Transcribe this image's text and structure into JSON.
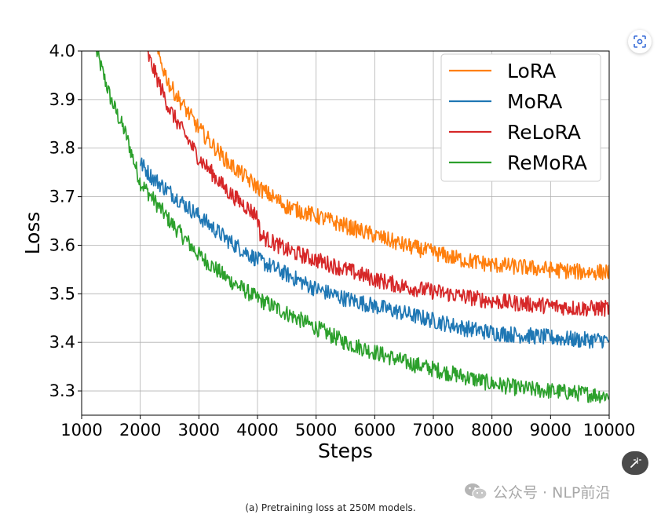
{
  "chart_data": {
    "type": "line",
    "xlabel": "Steps",
    "ylabel": "Loss",
    "xlim": [
      1000,
      10000
    ],
    "ylim": [
      3.25,
      4.0
    ],
    "x_ticks": [
      "1000",
      "2000",
      "3000",
      "4000",
      "5000",
      "6000",
      "7000",
      "8000",
      "9000",
      "10000"
    ],
    "y_ticks": [
      "3.3",
      "3.4",
      "3.5",
      "3.6",
      "3.7",
      "3.8",
      "3.9",
      "4.0"
    ],
    "grid": true,
    "legend_position": "top-right",
    "series": [
      {
        "name": "LoRA",
        "color": "#ff7f0e",
        "x": [
          2280,
          2500,
          3000,
          3500,
          4000,
          4500,
          5000,
          5500,
          6000,
          6500,
          7000,
          7500,
          8000,
          8500,
          9000,
          9500,
          10000
        ],
        "values": [
          4.0,
          3.93,
          3.84,
          3.77,
          3.72,
          3.68,
          3.66,
          3.64,
          3.62,
          3.6,
          3.585,
          3.57,
          3.56,
          3.555,
          3.55,
          3.545,
          3.545
        ]
      },
      {
        "name": "MoRA",
        "color": "#1f77b4",
        "x": [
          2000,
          2200,
          2500,
          3000,
          3500,
          4000,
          4500,
          5000,
          5500,
          6000,
          6500,
          7000,
          7500,
          8000,
          8500,
          9000,
          9500,
          10000
        ],
        "values": [
          3.77,
          3.74,
          3.71,
          3.66,
          3.61,
          3.57,
          3.54,
          3.51,
          3.49,
          3.475,
          3.46,
          3.445,
          3.43,
          3.42,
          3.415,
          3.41,
          3.405,
          3.405
        ]
      },
      {
        "name": "ReLoRA",
        "color": "#d62728",
        "x": [
          2100,
          2500,
          3000,
          3500,
          4000,
          4050,
          4500,
          5000,
          5500,
          6000,
          6500,
          7000,
          7500,
          8000,
          8500,
          9000,
          9500,
          10000
        ],
        "values": [
          4.0,
          3.88,
          3.78,
          3.71,
          3.66,
          3.62,
          3.59,
          3.57,
          3.55,
          3.53,
          3.515,
          3.505,
          3.495,
          3.485,
          3.48,
          3.475,
          3.47,
          3.47
        ]
      },
      {
        "name": "ReMoRA",
        "color": "#2ca02c",
        "x": [
          1250,
          1500,
          1750,
          2000,
          2500,
          3000,
          3500,
          4000,
          4500,
          5000,
          5500,
          6000,
          6500,
          7000,
          7500,
          8000,
          8500,
          9000,
          9500,
          10000
        ],
        "values": [
          4.0,
          3.9,
          3.83,
          3.73,
          3.65,
          3.58,
          3.53,
          3.49,
          3.46,
          3.43,
          3.4,
          3.38,
          3.36,
          3.345,
          3.33,
          3.315,
          3.305,
          3.3,
          3.295,
          3.29
        ]
      }
    ]
  },
  "caption": "(a) Pretraining loss at 250M models.",
  "watermark": "公众号 · NLP前沿",
  "icons": {
    "scan": "scan-icon",
    "magic": "magic-wand-icon",
    "wechat": "wechat-icon"
  }
}
